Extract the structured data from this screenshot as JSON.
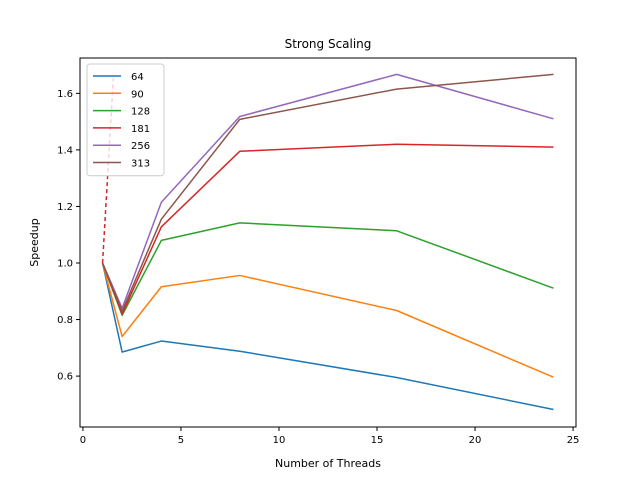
{
  "chart_data": {
    "type": "line",
    "title": "Strong Scaling",
    "xlabel": "Number of Threads",
    "ylabel": "Speedup",
    "xlim": [
      -0.15,
      25.15
    ],
    "ylim": [
      0.42,
      1.725
    ],
    "xticks": [
      0,
      5,
      10,
      15,
      20,
      25
    ],
    "yticks": [
      0.6,
      0.8,
      1.0,
      1.2,
      1.4,
      1.6
    ],
    "grid": false,
    "legend_position": "top-left",
    "x": [
      1,
      2,
      4,
      8,
      16,
      24
    ],
    "series": [
      {
        "name": "64",
        "color": "#1f77b4",
        "values": [
          1.0,
          0.685,
          0.724,
          0.688,
          0.595,
          0.482
        ]
      },
      {
        "name": "90",
        "color": "#ff7f0e",
        "values": [
          1.0,
          0.74,
          0.916,
          0.956,
          0.832,
          0.596
        ]
      },
      {
        "name": "128",
        "color": "#2ca02c",
        "values": [
          1.0,
          0.815,
          1.08,
          1.142,
          1.114,
          0.911
        ]
      },
      {
        "name": "181",
        "color": "#d62728",
        "values": [
          1.0,
          0.82,
          1.128,
          1.395,
          1.42,
          1.41
        ]
      },
      {
        "name": "256",
        "color": "#9467bd",
        "values": [
          1.0,
          0.84,
          1.215,
          1.518,
          1.667,
          1.51
        ]
      },
      {
        "name": "313",
        "color": "#8c564b",
        "values": [
          1.0,
          0.83,
          1.155,
          1.508,
          1.615,
          1.667
        ]
      }
    ],
    "annotations": [
      {
        "type": "dashed-line",
        "color": "#d62728",
        "x": [
          1,
          1.55
        ],
        "y": [
          1.0,
          1.655
        ]
      }
    ]
  }
}
